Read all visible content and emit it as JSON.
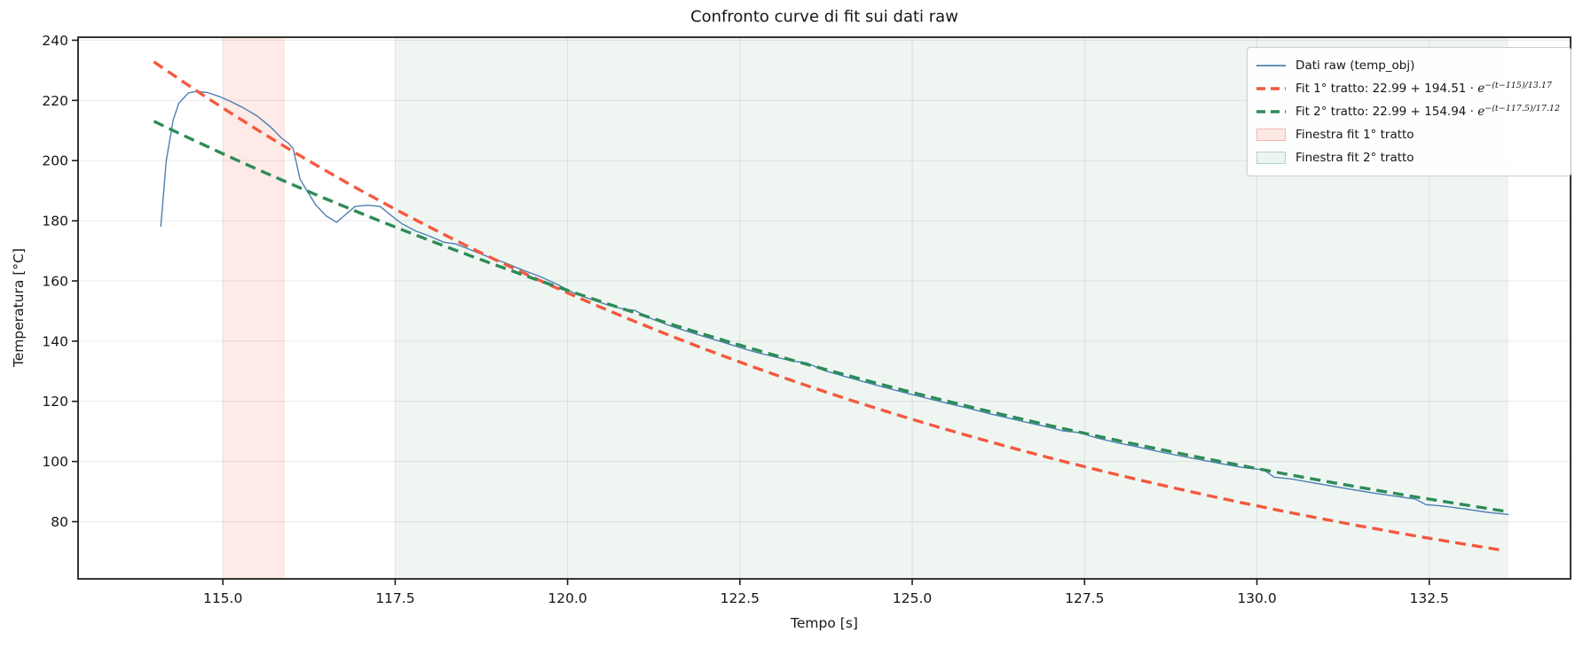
{
  "title": "Confronto curve di fit sui dati raw",
  "x_axis": {
    "label": "Tempo [s]",
    "min": 112.9,
    "max": 134.55,
    "tick_values": [
      115.0,
      117.5,
      120.0,
      122.5,
      125.0,
      127.5,
      130.0,
      132.5
    ],
    "tick_labels": [
      "115.0",
      "117.5",
      "120.0",
      "122.5",
      "125.0",
      "127.5",
      "130.0",
      "132.5"
    ]
  },
  "y_axis": {
    "label": "Temperatura [°C]",
    "min": 61,
    "max": 241,
    "tick_values": [
      80,
      100,
      120,
      140,
      160,
      180,
      200,
      220,
      240
    ],
    "tick_labels": [
      "80",
      "100",
      "120",
      "140",
      "160",
      "180",
      "200",
      "220",
      "240"
    ]
  },
  "colors": {
    "raw_line": "#4d80b3",
    "fit1_line": "#f4593f",
    "fit2_line": "#2e8b57",
    "window1_fill": "rgba(250,128,114,0.17)",
    "window1_border": "rgba(250,128,114,0.50)",
    "window2_fill": "rgba(46,139,87,0.08)",
    "window2_border": "rgba(46,139,87,0.30)",
    "grid": "rgba(0,0,0,0.085)",
    "spine": "#1f1f1f"
  },
  "chart_data": {
    "type": "line",
    "title": "Confronto curve di fit sui dati raw",
    "xlabel": "Tempo [s]",
    "ylabel": "Temperatura [°C]",
    "xlim": [
      112.9,
      134.55
    ],
    "ylim": [
      61,
      241
    ],
    "grid": true,
    "legend_position": "upper right",
    "windows": [
      {
        "slug": "fit1-window-band",
        "name": "Finestra fit 1° tratto",
        "x0": 115.0,
        "x1": 115.9
      },
      {
        "slug": "fit2-window-band",
        "name": "Finestra fit 2° tratto",
        "x0": 117.5,
        "x1": 133.65
      }
    ],
    "series": [
      {
        "slug": "raw-data-line",
        "name": "Dati raw (temp_obj)",
        "style": "solid",
        "points": [
          [
            114.1,
            178.0
          ],
          [
            114.18,
            200.0
          ],
          [
            114.28,
            213.5
          ],
          [
            114.36,
            219.0
          ],
          [
            114.5,
            222.5
          ],
          [
            114.62,
            223.0
          ],
          [
            114.78,
            222.6
          ],
          [
            114.95,
            221.3
          ],
          [
            115.1,
            219.8
          ],
          [
            115.3,
            217.5
          ],
          [
            115.5,
            214.8
          ],
          [
            115.7,
            211.0
          ],
          [
            115.85,
            207.5
          ],
          [
            115.95,
            205.8
          ],
          [
            116.02,
            204.0
          ],
          [
            116.12,
            193.8
          ],
          [
            116.22,
            190.0
          ],
          [
            116.35,
            185.2
          ],
          [
            116.5,
            181.6
          ],
          [
            116.65,
            179.5
          ],
          [
            116.8,
            182.5
          ],
          [
            116.92,
            184.8
          ],
          [
            117.1,
            185.2
          ],
          [
            117.28,
            184.8
          ],
          [
            117.45,
            181.6
          ],
          [
            117.6,
            179.0
          ],
          [
            117.8,
            176.6
          ],
          [
            118.0,
            174.9
          ],
          [
            118.2,
            172.9
          ],
          [
            118.38,
            172.3
          ],
          [
            118.6,
            170.3
          ],
          [
            118.85,
            168.0
          ],
          [
            119.1,
            166.0
          ],
          [
            119.35,
            163.6
          ],
          [
            119.6,
            161.5
          ],
          [
            119.85,
            158.9
          ],
          [
            120.1,
            155.9
          ],
          [
            120.35,
            153.8
          ],
          [
            120.6,
            151.9
          ],
          [
            120.8,
            150.7
          ],
          [
            120.98,
            150.2
          ],
          [
            121.2,
            147.6
          ],
          [
            121.5,
            145.0
          ],
          [
            121.8,
            142.8
          ],
          [
            122.1,
            140.7
          ],
          [
            122.4,
            138.6
          ],
          [
            122.7,
            136.5
          ],
          [
            123.0,
            134.8
          ],
          [
            123.25,
            133.4
          ],
          [
            123.48,
            132.7
          ],
          [
            123.7,
            130.4
          ],
          [
            124.0,
            128.4
          ],
          [
            124.3,
            126.5
          ],
          [
            124.6,
            124.6
          ],
          [
            124.9,
            122.8
          ],
          [
            125.2,
            121.1
          ],
          [
            125.5,
            119.4
          ],
          [
            125.8,
            117.8
          ],
          [
            126.1,
            116.0
          ],
          [
            126.4,
            114.4
          ],
          [
            126.7,
            112.8
          ],
          [
            127.0,
            111.3
          ],
          [
            127.18,
            110.2
          ],
          [
            127.42,
            109.6
          ],
          [
            127.7,
            107.7
          ],
          [
            128.0,
            106.1
          ],
          [
            128.3,
            104.7
          ],
          [
            128.6,
            103.2
          ],
          [
            128.9,
            101.8
          ],
          [
            129.2,
            100.5
          ],
          [
            129.5,
            99.2
          ],
          [
            129.8,
            98.0
          ],
          [
            130.1,
            97.2
          ],
          [
            130.25,
            94.8
          ],
          [
            130.5,
            94.2
          ],
          [
            130.8,
            93.0
          ],
          [
            131.1,
            91.8
          ],
          [
            131.4,
            90.6
          ],
          [
            131.7,
            89.5
          ],
          [
            132.0,
            88.5
          ],
          [
            132.3,
            87.5
          ],
          [
            132.45,
            85.7
          ],
          [
            132.7,
            85.2
          ],
          [
            133.0,
            84.3
          ],
          [
            133.35,
            83.1
          ],
          [
            133.65,
            82.4
          ]
        ]
      },
      {
        "slug": "fit1-line",
        "name": "Fit 1° tratto",
        "equation": "22.99 + 194.51 · e^(−(t−115)/13.17)",
        "style": "dashed",
        "fit_params": {
          "offset": 22.99,
          "amplitude": 194.51,
          "t0": 115.0,
          "tau": 13.17
        },
        "t_start": 114.0,
        "t_end": 133.65
      },
      {
        "slug": "fit2-line",
        "name": "Fit 2° tratto",
        "equation": "22.99 + 154.94 · e^(−(t−117.5)/17.12)",
        "style": "dashed",
        "fit_params": {
          "offset": 22.99,
          "amplitude": 154.94,
          "t0": 117.5,
          "tau": 17.12
        },
        "t_start": 114.0,
        "t_end": 133.65
      }
    ]
  },
  "legend": {
    "items": [
      {
        "slug": "legend-item-raw",
        "swatch": "line",
        "color_key": "raw_line",
        "label": "Dati raw (temp_obj)"
      },
      {
        "slug": "legend-item-fit1",
        "swatch": "dashed",
        "color_key": "fit1_line",
        "label_prefix": "Fit 1° tratto: 22.99 + 194.51 · ",
        "math_base": "e",
        "sup": "−(t−115)/13.17"
      },
      {
        "slug": "legend-item-fit2",
        "swatch": "dashed",
        "color_key": "fit2_line",
        "label_prefix": "Fit 2° tratto: 22.99 + 154.94 · ",
        "math_base": "e",
        "sup": "−(t−117.5)/17.12"
      },
      {
        "slug": "legend-item-window1",
        "swatch": "patch",
        "fill_key": "window1_fill",
        "border_key": "window1_border",
        "label": "Finestra fit 1° tratto"
      },
      {
        "slug": "legend-item-window2",
        "swatch": "patch",
        "fill_key": "window2_fill",
        "border_key": "window2_border",
        "label": "Finestra fit 2° tratto"
      }
    ]
  }
}
